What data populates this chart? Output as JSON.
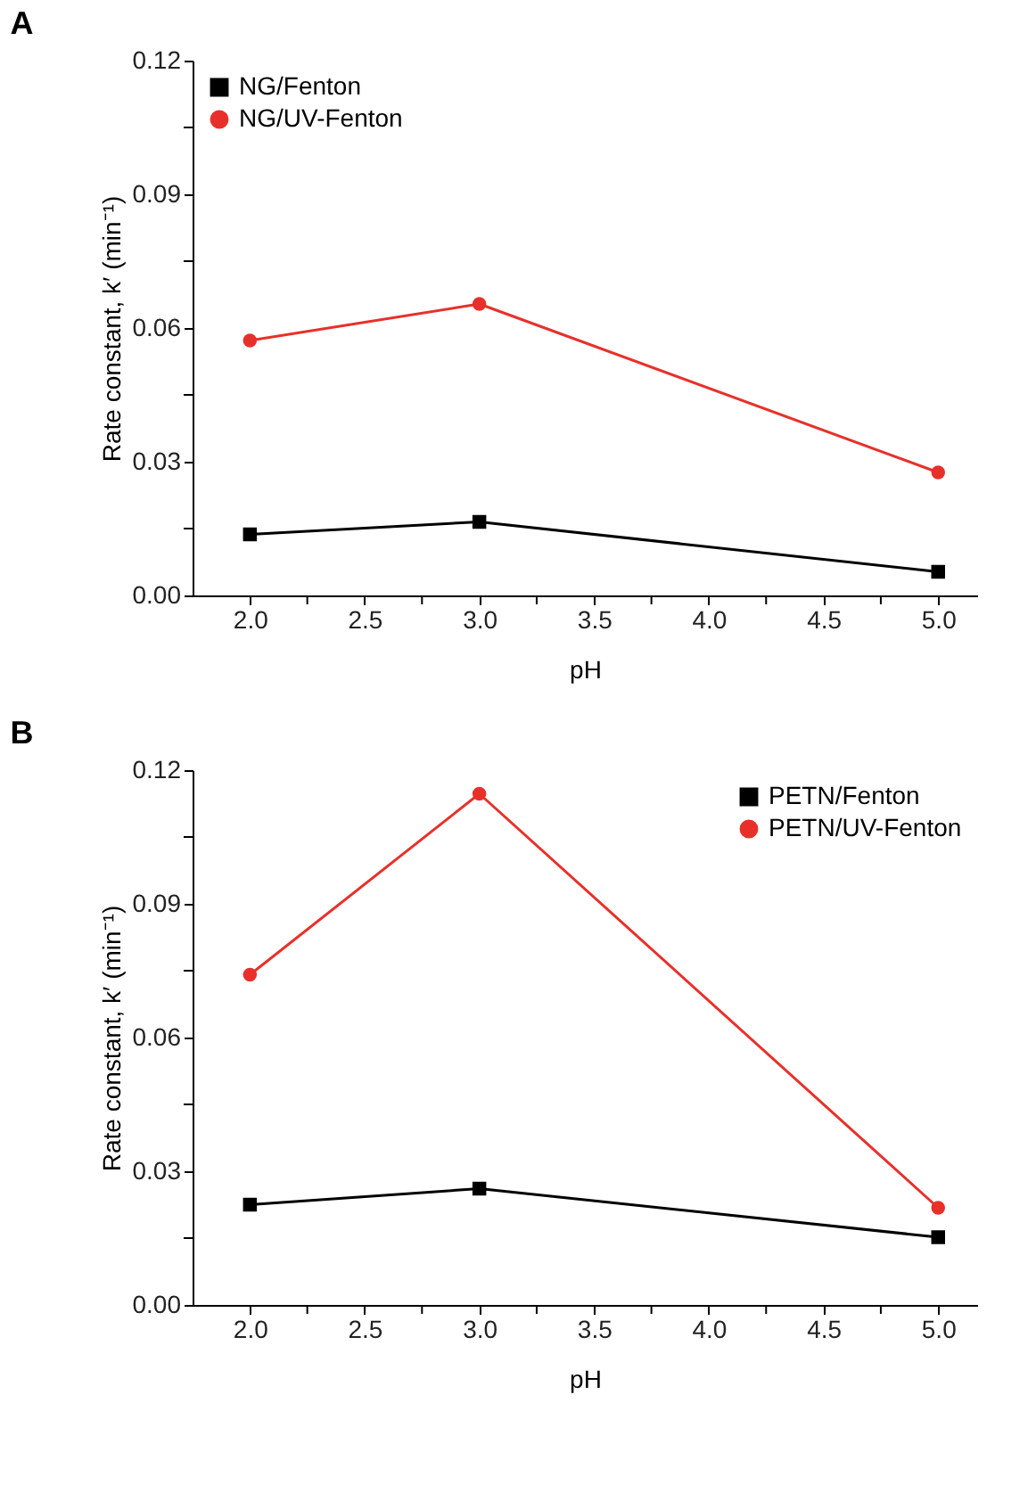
{
  "chart_data": [
    {
      "type": "line",
      "title": "A",
      "xlabel": "pH",
      "ylabel": "Rate constant, k′ (min⁻¹)",
      "x": [
        2.0,
        3.0,
        5.0
      ],
      "series": [
        {
          "name": "NG/Fenton",
          "color": "#000000",
          "marker": "square",
          "values": [
            0.0137,
            0.0165,
            0.0053
          ]
        },
        {
          "name": "NG/UV-Fenton",
          "color": "#e8302a",
          "marker": "circle",
          "values": [
            0.0572,
            0.0654,
            0.0276
          ]
        }
      ],
      "xlim": [
        1.75,
        5.17
      ],
      "xticks": [
        {
          "value": 2.0,
          "label": "2.0"
        },
        {
          "value": 2.25,
          "label": null
        },
        {
          "value": 2.5,
          "label": "2.5"
        },
        {
          "value": 2.75,
          "label": null
        },
        {
          "value": 3.0,
          "label": "3.0"
        },
        {
          "value": 3.25,
          "label": null
        },
        {
          "value": 3.5,
          "label": "3.5"
        },
        {
          "value": 3.75,
          "label": null
        },
        {
          "value": 4.0,
          "label": "4.0"
        },
        {
          "value": 4.25,
          "label": null
        },
        {
          "value": 4.5,
          "label": "4.5"
        },
        {
          "value": 4.75,
          "label": null
        },
        {
          "value": 5.0,
          "label": "5.0"
        }
      ],
      "ylim": [
        0,
        0.12
      ],
      "yticks": [
        {
          "value": 0,
          "label": "0.00"
        },
        {
          "value": 0.015,
          "label": null
        },
        {
          "value": 0.03,
          "label": "0.03"
        },
        {
          "value": 0.045,
          "label": null
        },
        {
          "value": 0.06,
          "label": "0.06"
        },
        {
          "value": 0.075,
          "label": null
        },
        {
          "value": 0.09,
          "label": "0.09"
        },
        {
          "value": 0.105,
          "label": null
        },
        {
          "value": 0.12,
          "label": "0.12"
        }
      ],
      "grid": false,
      "legend": "top left",
      "line_style": "solid"
    },
    {
      "type": "line",
      "title": "B",
      "xlabel": "pH",
      "ylabel": "Rate constant, k′ (min⁻¹)",
      "x": [
        2.0,
        3.0,
        5.0
      ],
      "series": [
        {
          "name": "PETN/Fenton",
          "color": "#000000",
          "marker": "square",
          "values": [
            0.0225,
            0.0261,
            0.0152
          ]
        },
        {
          "name": "PETN/UV-Fenton",
          "color": "#e8302a",
          "marker": "circle",
          "values": [
            0.0741,
            0.1147,
            0.0218
          ]
        }
      ],
      "xlim": [
        1.75,
        5.17
      ],
      "xticks": [
        {
          "value": 2.0,
          "label": "2.0"
        },
        {
          "value": 2.25,
          "label": null
        },
        {
          "value": 2.5,
          "label": "2.5"
        },
        {
          "value": 2.75,
          "label": null
        },
        {
          "value": 3.0,
          "label": "3.0"
        },
        {
          "value": 3.25,
          "label": null
        },
        {
          "value": 3.5,
          "label": "3.5"
        },
        {
          "value": 3.75,
          "label": null
        },
        {
          "value": 4.0,
          "label": "4.0"
        },
        {
          "value": 4.25,
          "label": null
        },
        {
          "value": 4.5,
          "label": "4.5"
        },
        {
          "value": 4.75,
          "label": null
        },
        {
          "value": 5.0,
          "label": "5.0"
        }
      ],
      "ylim": [
        0,
        0.12
      ],
      "yticks": [
        {
          "value": 0,
          "label": "0.00"
        },
        {
          "value": 0.015,
          "label": null
        },
        {
          "value": 0.03,
          "label": "0.03"
        },
        {
          "value": 0.045,
          "label": null
        },
        {
          "value": 0.06,
          "label": "0.06"
        },
        {
          "value": 0.075,
          "label": null
        },
        {
          "value": 0.09,
          "label": "0.09"
        },
        {
          "value": 0.105,
          "label": null
        },
        {
          "value": 0.12,
          "label": "0.12"
        }
      ],
      "grid": false,
      "legend": "top right",
      "line_style": "solid"
    }
  ]
}
